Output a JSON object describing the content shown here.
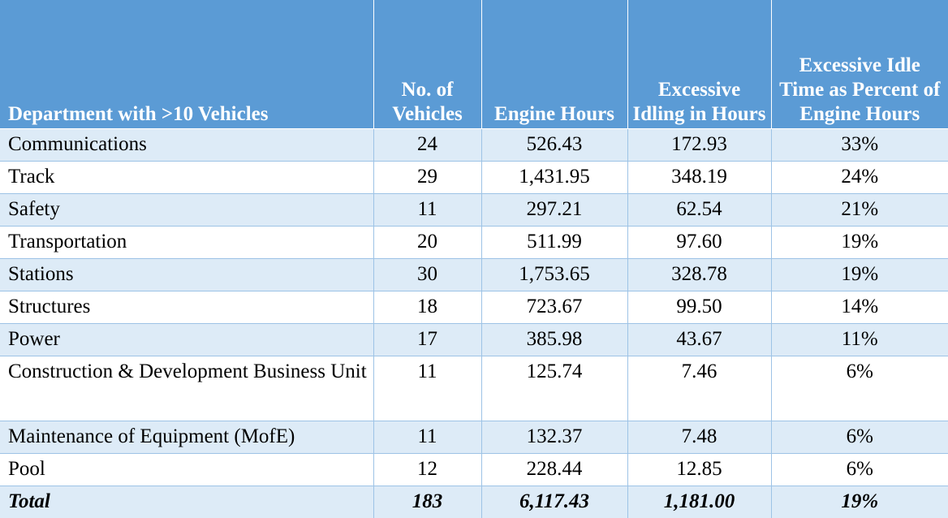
{
  "table": {
    "headers": [
      "Department with >10 Vehicles",
      "No. of Vehicles",
      "Engine Hours",
      "Excessive Idling in Hours",
      "Excessive Idle Time as Percent of Engine Hours"
    ],
    "rows": [
      [
        "Communications",
        "24",
        "526.43",
        "172.93",
        "33%"
      ],
      [
        "Track",
        "29",
        "1,431.95",
        "348.19",
        "24%"
      ],
      [
        "Safety",
        "11",
        "297.21",
        "62.54",
        "21%"
      ],
      [
        "Transportation",
        "20",
        "511.99",
        "97.60",
        "19%"
      ],
      [
        "Stations",
        "30",
        "1,753.65",
        "328.78",
        "19%"
      ],
      [
        "Structures",
        "18",
        "723.67",
        "99.50",
        "14%"
      ],
      [
        "Power",
        "17",
        "385.98",
        "43.67",
        "11%"
      ],
      [
        "Construction & Development Business Unit",
        "11",
        "125.74",
        "7.46",
        "6%"
      ],
      [
        "Maintenance of Equipment (MofE)",
        "11",
        "132.37",
        "7.48",
        "6%"
      ],
      [
        "Pool",
        "12",
        "228.44",
        "12.85",
        "6%"
      ],
      [
        "Total",
        "183",
        "6,117.43",
        "1,181.00",
        "19%"
      ]
    ]
  },
  "colors": {
    "header_bg": "#5b9bd5",
    "header_text": "#ffffff",
    "band_bg": "#ddebf7",
    "grid_line": "#9dc3e6"
  }
}
